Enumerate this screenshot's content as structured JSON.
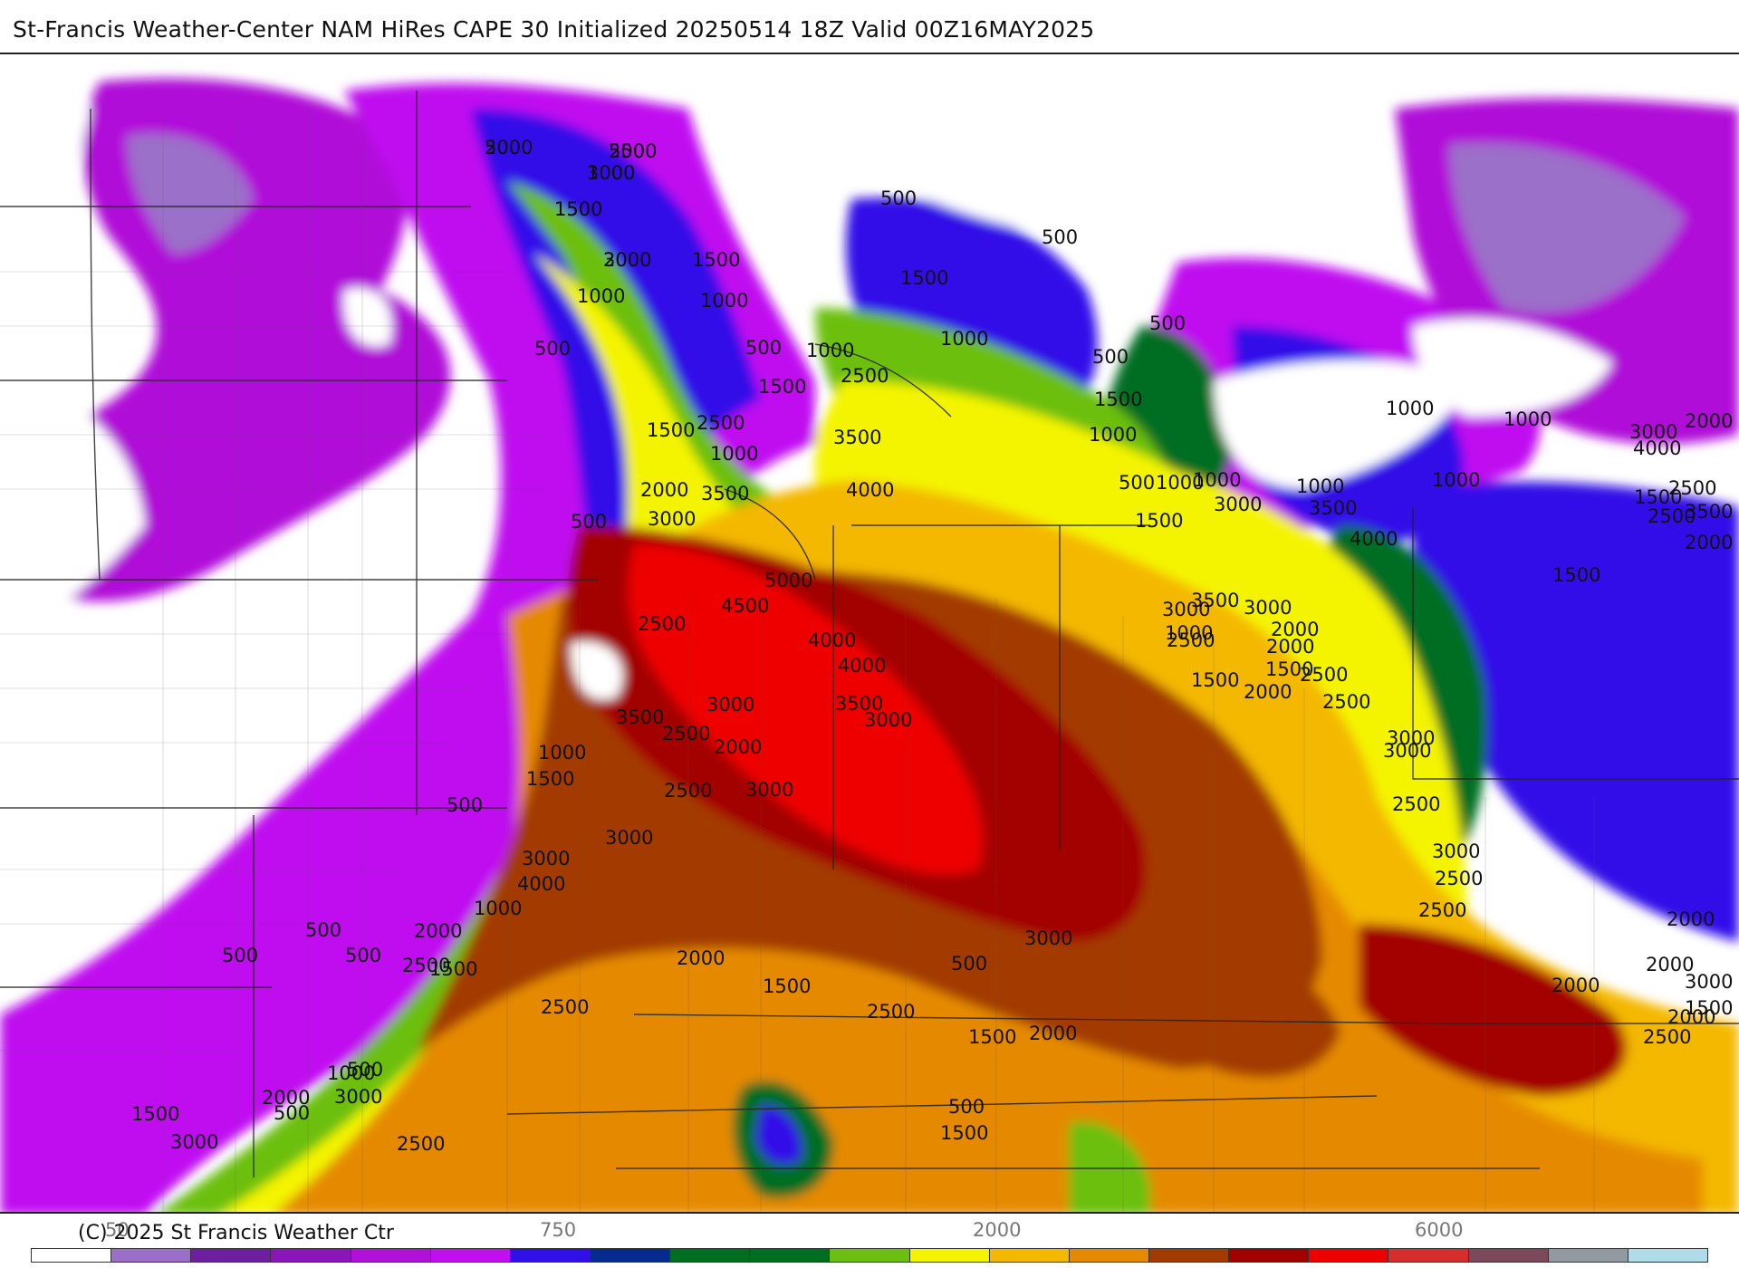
{
  "title": "St-Francis Weather-Center NAM HiRes CAPE  30 Initialized 20250514 18Z Valid 00Z16MAY2025",
  "copyright": "(C) 2025 St Francis Weather Ctr",
  "colorbar": {
    "ticks": [
      "50",
      "750",
      "2000",
      "6000"
    ],
    "colors": [
      "#ffffff",
      "#9b6fc8",
      "#6e1fa0",
      "#8a15b8",
      "#b010d8",
      "#c010f0",
      "#3010e8",
      "#062a90",
      "#006e20",
      "#006e20",
      "#6cbf10",
      "#f4f400",
      "#f4b800",
      "#e58a00",
      "#a33b00",
      "#a30000",
      "#ee0000",
      "#d82d2d",
      "#7a4a5a",
      "#909aa0",
      "#b0dcea"
    ]
  },
  "map": {
    "contour_labels": [
      "500",
      "500",
      "1000",
      "1500",
      "2000",
      "1500",
      "1000",
      "1000",
      "500",
      "500",
      "1000",
      "500",
      "2500",
      "1500",
      "2500",
      "1500",
      "1000",
      "3500",
      "2000",
      "3500",
      "4000",
      "3000",
      "500",
      "5000",
      "4500",
      "2500",
      "4000",
      "4000",
      "3500",
      "3000",
      "3500",
      "3000",
      "2500",
      "2000",
      "2500",
      "3000",
      "1000",
      "1500",
      "500",
      "3000",
      "3000",
      "4000",
      "1000",
      "2000",
      "500",
      "500",
      "500",
      "2500",
      "1500",
      "2000",
      "1500",
      "2500",
      "2500",
      "500",
      "1000",
      "2000",
      "3000",
      "500",
      "1500",
      "3000",
      "2500",
      "1500",
      "500",
      "500",
      "1500",
      "2000",
      "3000",
      "1500",
      "1000",
      "500",
      "500",
      "500",
      "1000",
      "1500",
      "500",
      "1000",
      "1500",
      "1000",
      "1000",
      "1000",
      "1000",
      "1000",
      "1500",
      "2500",
      "2000",
      "3000",
      "1500",
      "4000",
      "3500",
      "2000",
      "2500",
      "4000",
      "3500",
      "3000",
      "3500",
      "3000",
      "3000",
      "1500",
      "1000",
      "2500",
      "2000",
      "1500",
      "2000",
      "2000",
      "2500",
      "2500",
      "3000",
      "3000",
      "2500",
      "3000",
      "2500",
      "2500",
      "2000",
      "2500",
      "3000",
      "2000",
      "1500",
      "2000",
      "2000",
      "2000",
      "2500",
      "3000",
      "1500",
      "3000"
    ]
  }
}
